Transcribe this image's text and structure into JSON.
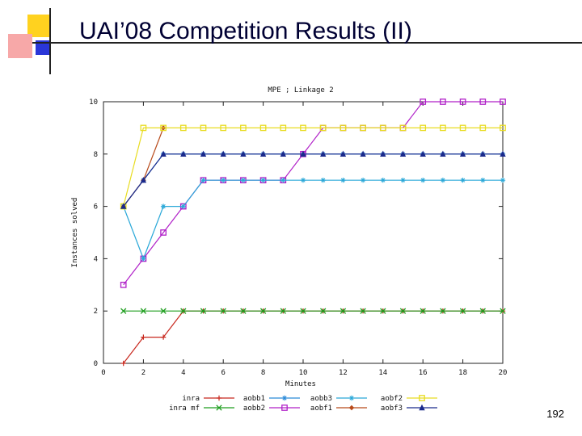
{
  "slide": {
    "title": "UAI’08 Competition Results (II)",
    "page_number": "192"
  },
  "chart_data": {
    "type": "line",
    "title": "MPE ; Linkage 2",
    "xlabel": "Minutes",
    "ylabel": "Instances solved",
    "xlim": [
      0,
      20
    ],
    "ylim": [
      0,
      10
    ],
    "x_ticks": [
      "0",
      "2",
      "4",
      "6",
      "8",
      "10",
      "12",
      "14",
      "16",
      "18",
      "20"
    ],
    "y_ticks": [
      "0",
      "2",
      "4",
      "6",
      "8",
      "10"
    ],
    "legend_position": "bottom",
    "series": [
      {
        "name": "inra",
        "color": "#c8281e",
        "marker": "plus",
        "x": [
          1,
          2,
          3,
          4,
          5,
          6,
          7,
          8,
          9,
          10,
          11,
          12,
          13,
          14,
          15,
          16,
          17,
          18,
          19,
          20
        ],
        "y": [
          0,
          1,
          1,
          2,
          2,
          2,
          2,
          2,
          2,
          2,
          2,
          2,
          2,
          2,
          2,
          2,
          2,
          2,
          2,
          2
        ]
      },
      {
        "name": "inra mf",
        "color": "#1e9e1e",
        "marker": "cross",
        "x": [
          1,
          2,
          3,
          4,
          5,
          6,
          7,
          8,
          9,
          10,
          11,
          12,
          13,
          14,
          15,
          16,
          17,
          18,
          19,
          20
        ],
        "y": [
          2,
          2,
          2,
          2,
          2,
          2,
          2,
          2,
          2,
          2,
          2,
          2,
          2,
          2,
          2,
          2,
          2,
          2,
          2,
          2
        ]
      },
      {
        "name": "aobb1",
        "color": "#2a8ad8",
        "marker": "star",
        "x": [
          1,
          2,
          3,
          4,
          5,
          6,
          7,
          8,
          9,
          10,
          11,
          12,
          13,
          14,
          15,
          16,
          17,
          18,
          19,
          20
        ],
        "y": [
          6,
          7,
          8,
          8,
          8,
          8,
          8,
          8,
          8,
          8,
          8,
          8,
          8,
          8,
          8,
          8,
          8,
          8,
          8,
          8
        ]
      },
      {
        "name": "aobb2",
        "color": "#b020c8",
        "marker": "square",
        "x": [
          1,
          2,
          3,
          4,
          5,
          6,
          7,
          8,
          9,
          10,
          11,
          12,
          13,
          14,
          15,
          16,
          17,
          18,
          19,
          20
        ],
        "y": [
          3,
          4,
          5,
          6,
          7,
          7,
          7,
          7,
          7,
          8,
          9,
          9,
          9,
          9,
          9,
          10,
          10,
          10,
          10,
          10
        ]
      },
      {
        "name": "aobb3",
        "color": "#2aa8d8",
        "marker": "star",
        "x": [
          1,
          2,
          3,
          4,
          5,
          6,
          7,
          8,
          9,
          10,
          11,
          12,
          13,
          14,
          15,
          16,
          17,
          18,
          19,
          20
        ],
        "y": [
          6,
          4,
          6,
          6,
          7,
          7,
          7,
          7,
          7,
          7,
          7,
          7,
          7,
          7,
          7,
          7,
          7,
          7,
          7,
          7
        ]
      },
      {
        "name": "aobf1",
        "color": "#b84a1a",
        "marker": "diamond",
        "x": [
          1,
          2,
          3
        ],
        "y": [
          6,
          7,
          9
        ]
      },
      {
        "name": "aobf2",
        "color": "#e8dc20",
        "marker": "square",
        "x": [
          1,
          2,
          3,
          4,
          5,
          6,
          7,
          8,
          9,
          10,
          11,
          12,
          13,
          14,
          15,
          16,
          17,
          18,
          19,
          20
        ],
        "y": [
          6,
          9,
          9,
          9,
          9,
          9,
          9,
          9,
          9,
          9,
          9,
          9,
          9,
          9,
          9,
          9,
          9,
          9,
          9,
          9
        ]
      },
      {
        "name": "aobf3",
        "color": "#1a2a8c",
        "marker": "triangle",
        "x": [
          1,
          2,
          3,
          4,
          5,
          6,
          7,
          8,
          9,
          10,
          11,
          12,
          13,
          14,
          15,
          16,
          17,
          18,
          19,
          20
        ],
        "y": [
          6,
          7,
          8,
          8,
          8,
          8,
          8,
          8,
          8,
          8,
          8,
          8,
          8,
          8,
          8,
          8,
          8,
          8,
          8,
          8
        ]
      }
    ]
  }
}
